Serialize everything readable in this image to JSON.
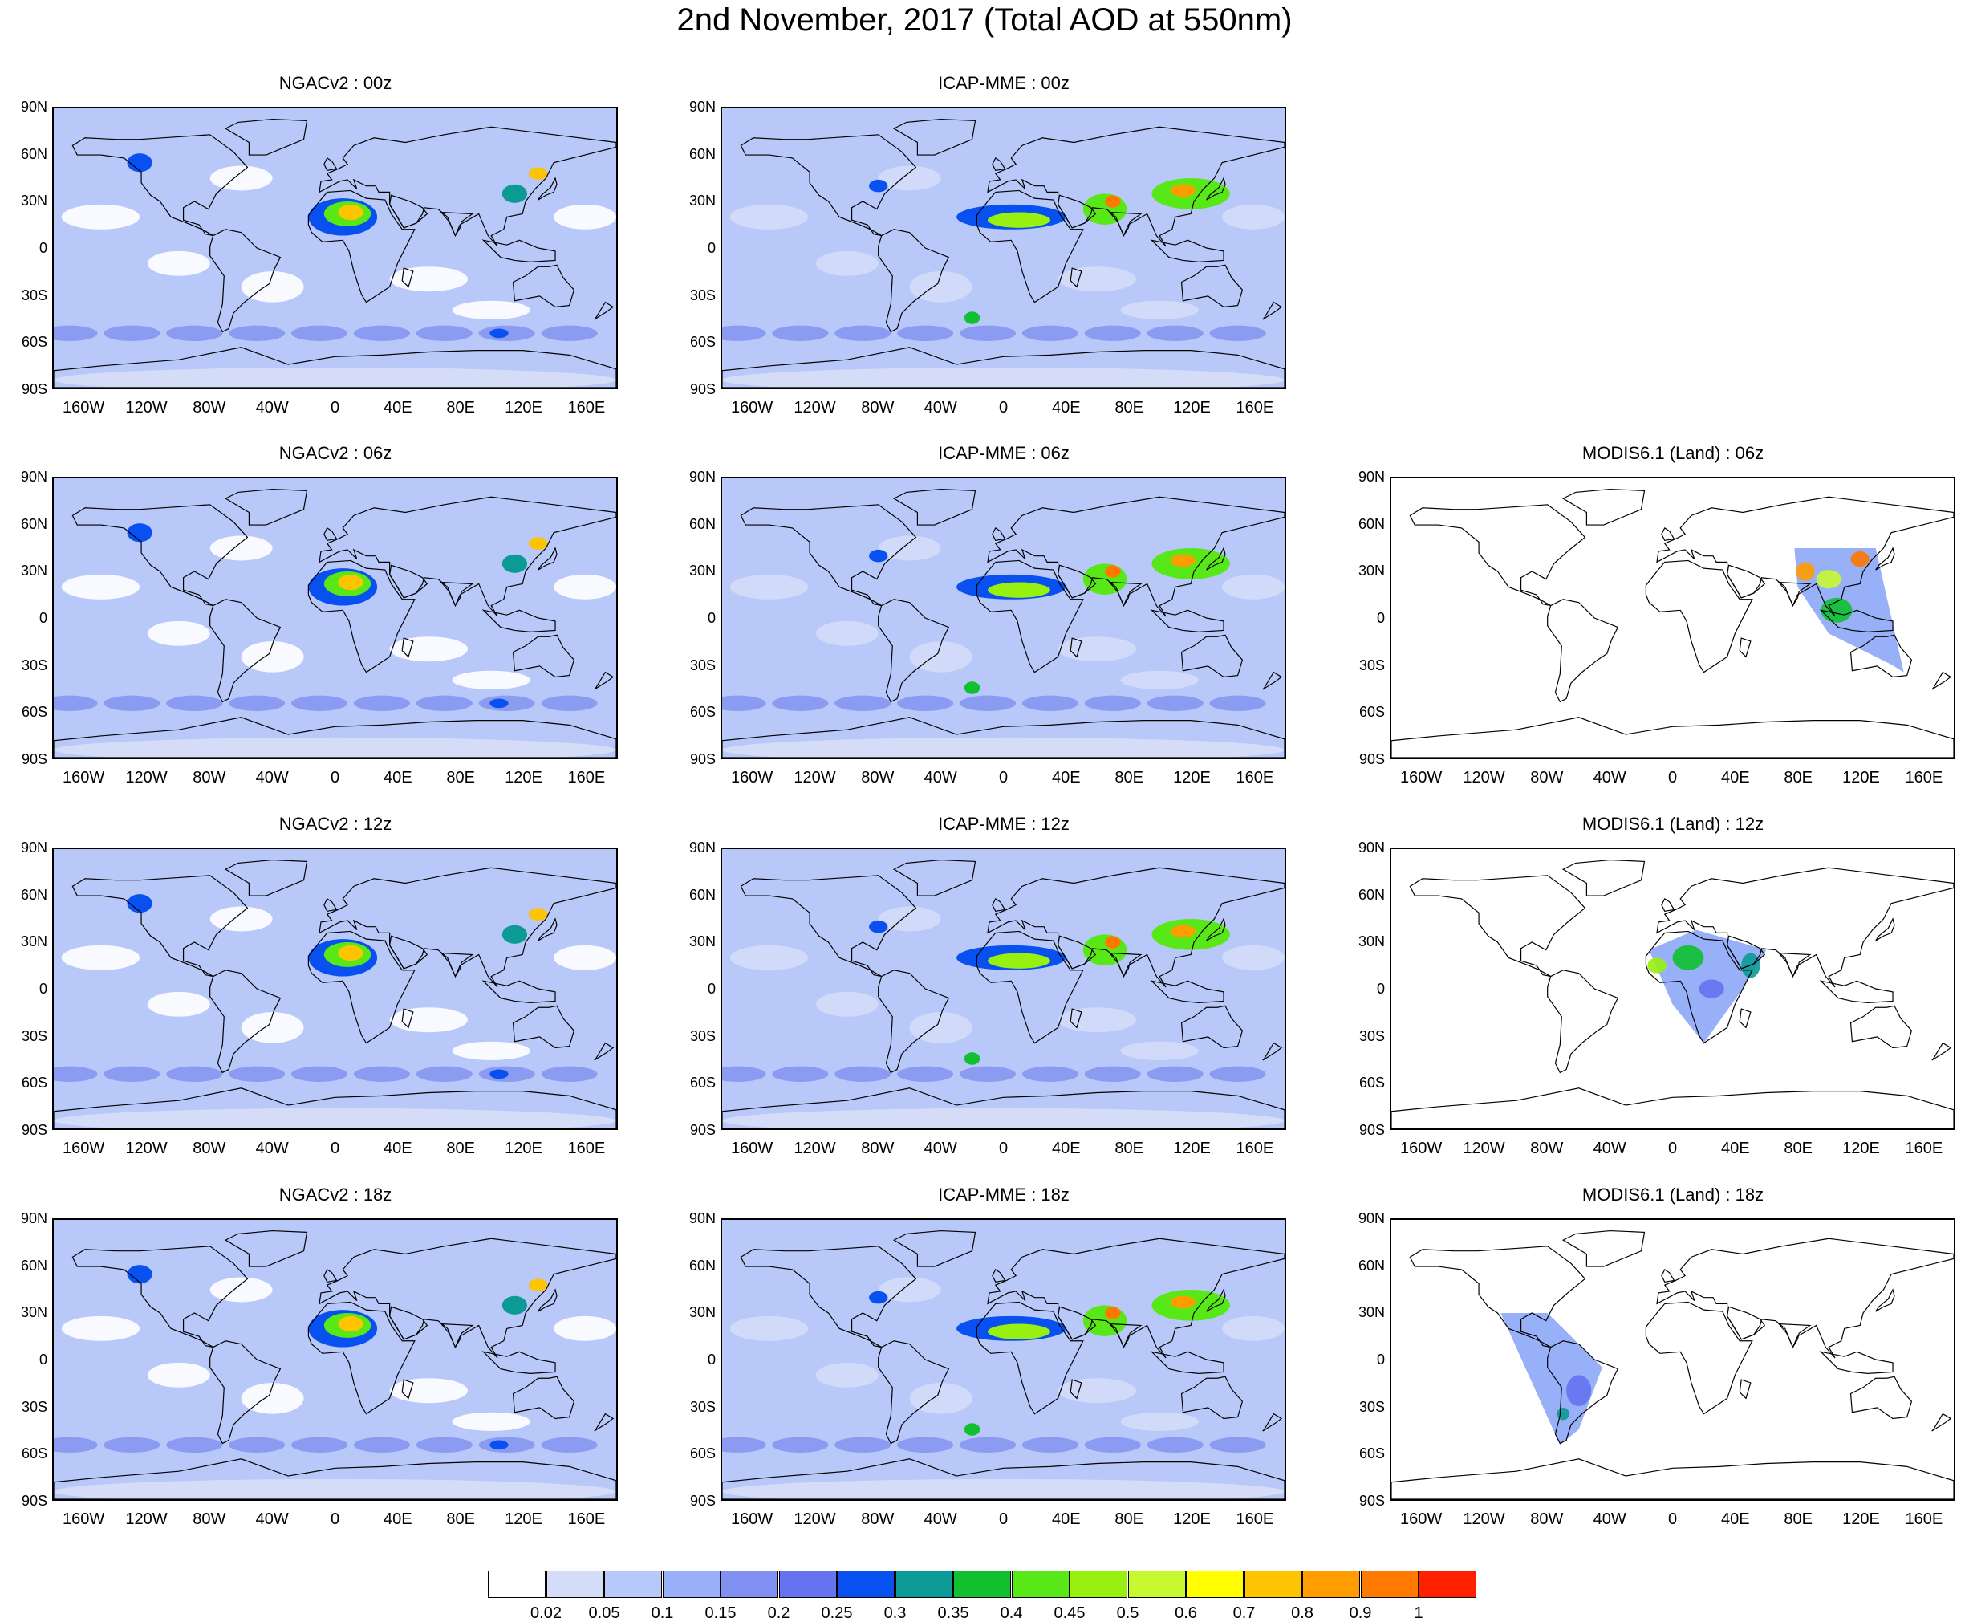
{
  "title": "2nd November, 2017 (Total AOD at 550nm)",
  "lat_ticks": [
    "90N",
    "60N",
    "30N",
    "0",
    "30S",
    "60S",
    "90S"
  ],
  "lon_ticks": [
    "160W",
    "120W",
    "80W",
    "40W",
    "0",
    "40E",
    "80E",
    "120E",
    "160E"
  ],
  "panels": [
    {
      "title": "NGACv2 : 00z",
      "model": "ngac",
      "col": 0,
      "row": 0
    },
    {
      "title": "ICAP-MME : 00z",
      "model": "icap",
      "col": 1,
      "row": 0
    },
    {
      "title": "NGACv2 : 06z",
      "model": "ngac",
      "col": 0,
      "row": 1
    },
    {
      "title": "ICAP-MME : 06z",
      "model": "icap",
      "col": 1,
      "row": 1
    },
    {
      "title": "MODIS6.1 (Land) : 06z",
      "model": "modis",
      "swath": "asia",
      "col": 2,
      "row": 1
    },
    {
      "title": "NGACv2 : 12z",
      "model": "ngac",
      "col": 0,
      "row": 2
    },
    {
      "title": "ICAP-MME : 12z",
      "model": "icap",
      "col": 1,
      "row": 2
    },
    {
      "title": "MODIS6.1 (Land) : 12z",
      "model": "modis",
      "swath": "africa",
      "col": 2,
      "row": 2
    },
    {
      "title": "NGACv2 : 18z",
      "model": "ngac",
      "col": 0,
      "row": 3
    },
    {
      "title": "ICAP-MME : 18z",
      "model": "icap",
      "col": 1,
      "row": 3
    },
    {
      "title": "MODIS6.1 (Land) : 18z",
      "model": "modis",
      "swath": "samerica",
      "col": 2,
      "row": 3
    }
  ],
  "colorbar": {
    "labels": [
      "0.02",
      "0.05",
      "0.1",
      "0.15",
      "0.2",
      "0.25",
      "0.3",
      "0.35",
      "0.4",
      "0.45",
      "0.5",
      "0.6",
      "0.7",
      "0.8",
      "0.9",
      "1"
    ],
    "colors": [
      "#ffffff",
      "#d4dcf8",
      "#b8c8f8",
      "#98b0f8",
      "#8090f0",
      "#6474f0",
      "#0850f0",
      "#0c9a94",
      "#10c030",
      "#58e818",
      "#98f010",
      "#c8f830",
      "#ffff00",
      "#ffc400",
      "#ff9c00",
      "#ff7800",
      "#ff2000"
    ]
  }
}
